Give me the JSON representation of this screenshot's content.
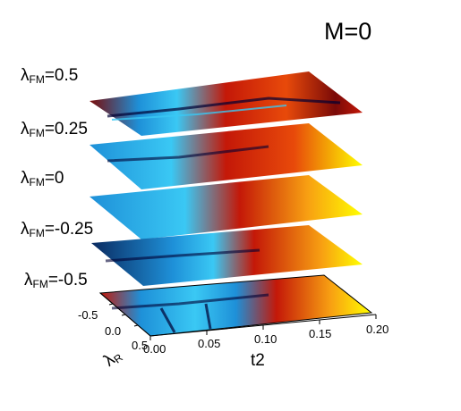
{
  "chart_data": {
    "type": "heatmap",
    "title": "M=0",
    "xlabel": "t2",
    "ylabel_symbol": "λ",
    "ylabel_sub": "R",
    "x_ticks": [
      "0.00",
      "0.05",
      "0.10",
      "0.15",
      "0.20"
    ],
    "y_ticks": [
      "-0.5",
      "0.0",
      "0.5"
    ],
    "xlim": [
      0,
      0.2
    ],
    "ylim": [
      -0.5,
      0.5
    ],
    "colormap": [
      "#000033",
      "#0a2a60",
      "#1e90d8",
      "#3ac8f4",
      "#7a0a08",
      "#c41808",
      "#e84a0a",
      "#f8a012",
      "#ffff00"
    ],
    "layers": [
      {
        "symbol": "λ",
        "sub": "FM",
        "value": "=0.5"
      },
      {
        "symbol": "λ",
        "sub": "FM",
        "value": "=0.25"
      },
      {
        "symbol": "λ",
        "sub": "FM",
        "value": "=0"
      },
      {
        "symbol": "λ",
        "sub": "FM",
        "value": "=-0.25"
      },
      {
        "symbol": "λ",
        "sub": "FM",
        "value": "=-0.5"
      }
    ]
  }
}
